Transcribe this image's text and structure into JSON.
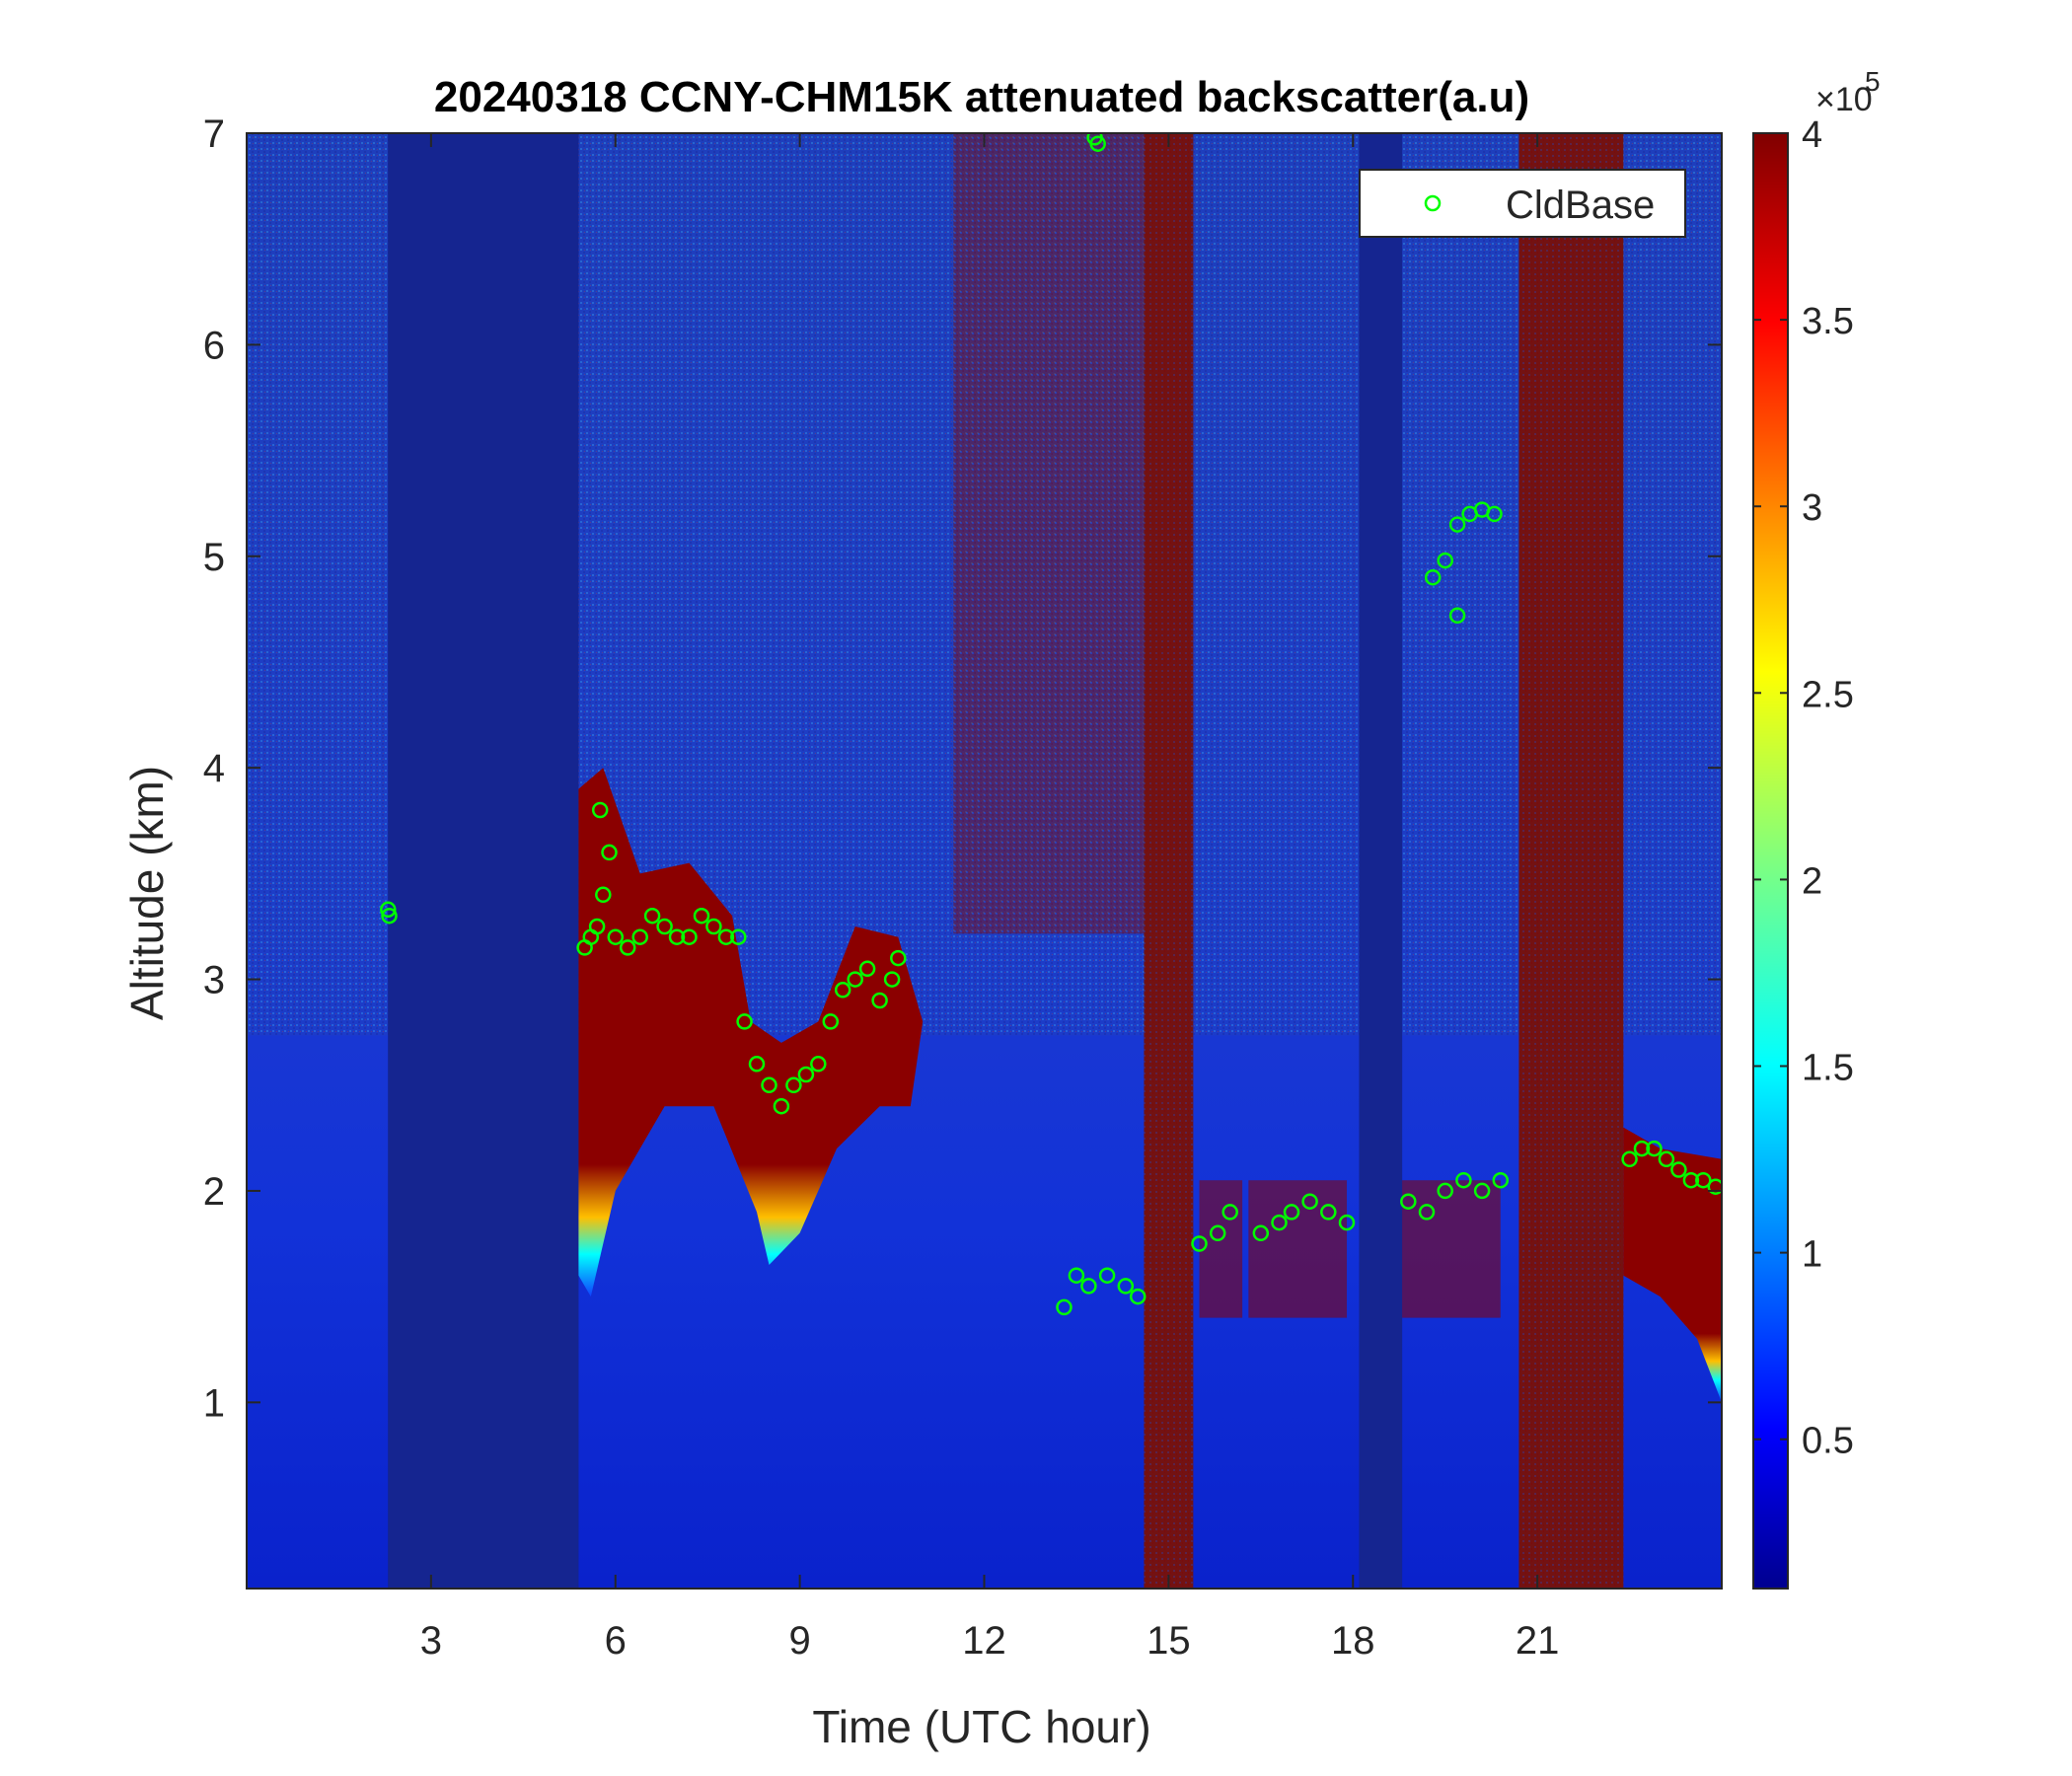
{
  "chart_data": {
    "type": "heatmap",
    "title": "20240318 CCNY-CHM15K attenuated backscatter(a.u)",
    "xlabel": "Time (UTC hour)",
    "ylabel": "Altitude (km)",
    "xlim": [
      0,
      24
    ],
    "ylim": [
      0.12,
      7
    ],
    "x_ticks": [
      3,
      6,
      9,
      12,
      15,
      18,
      21
    ],
    "x_tick_labels": [
      "3",
      "6",
      "9",
      "12",
      "15",
      "18",
      "21"
    ],
    "y_ticks": [
      1,
      2,
      3,
      4,
      5,
      6,
      7
    ],
    "y_tick_labels": [
      "1",
      "2",
      "3",
      "4",
      "5",
      "6",
      "7"
    ],
    "colorbar": {
      "colormap": "jet",
      "clim": [
        0.1,
        4
      ],
      "exponent_label": "×10",
      "exponent_power": "5",
      "ticks": [
        0.5,
        1,
        1.5,
        2,
        2.5,
        3,
        3.5,
        4
      ],
      "tick_labels": [
        "0.5",
        "1",
        "1.5",
        "2",
        "2.5",
        "3",
        "3.5",
        "4"
      ]
    },
    "legend": {
      "position": "top-right",
      "entries": [
        "CldBase"
      ]
    },
    "cloudbase_marker_color": "#00ff00",
    "data_gaps_hours": [
      [
        2.3,
        5.4
      ],
      [
        14.6,
        15.4
      ],
      [
        18.1,
        18.8
      ],
      [
        20.7,
        21.6
      ],
      [
        21.6,
        22.4
      ]
    ],
    "high_backscatter_regions": [
      {
        "x_range": [
          5.4,
          11.0
        ],
        "note": "cloud layer ~2.5–3.5 km"
      },
      {
        "x_range": [
          22.4,
          24.0
        ],
        "note": "cloud layer ~1.2–2.2 km"
      }
    ],
    "cloud_base_series": {
      "name": "CldBase",
      "points": [
        [
          2.3,
          3.33
        ],
        [
          2.32,
          3.3
        ],
        [
          5.5,
          3.15
        ],
        [
          5.6,
          3.2
        ],
        [
          5.7,
          3.25
        ],
        [
          5.8,
          3.4
        ],
        [
          5.75,
          3.8
        ],
        [
          5.9,
          3.6
        ],
        [
          6.0,
          3.2
        ],
        [
          6.2,
          3.15
        ],
        [
          6.4,
          3.2
        ],
        [
          6.6,
          3.3
        ],
        [
          6.8,
          3.25
        ],
        [
          7.0,
          3.2
        ],
        [
          7.2,
          3.2
        ],
        [
          7.4,
          3.3
        ],
        [
          7.6,
          3.25
        ],
        [
          7.8,
          3.2
        ],
        [
          8.0,
          3.2
        ],
        [
          8.1,
          2.8
        ],
        [
          8.3,
          2.6
        ],
        [
          8.5,
          2.5
        ],
        [
          8.7,
          2.4
        ],
        [
          8.9,
          2.5
        ],
        [
          9.1,
          2.55
        ],
        [
          9.3,
          2.6
        ],
        [
          9.5,
          2.8
        ],
        [
          9.7,
          2.95
        ],
        [
          9.9,
          3.0
        ],
        [
          10.1,
          3.05
        ],
        [
          10.3,
          2.9
        ],
        [
          10.5,
          3.0
        ],
        [
          10.6,
          3.1
        ],
        [
          13.3,
          1.45
        ],
        [
          13.5,
          1.6
        ],
        [
          13.7,
          1.55
        ],
        [
          14.0,
          1.6
        ],
        [
          14.3,
          1.55
        ],
        [
          14.5,
          1.5
        ],
        [
          13.8,
          6.98
        ],
        [
          13.85,
          6.95
        ],
        [
          15.5,
          1.75
        ],
        [
          15.8,
          1.8
        ],
        [
          16.0,
          1.9
        ],
        [
          16.5,
          1.8
        ],
        [
          16.8,
          1.85
        ],
        [
          17.0,
          1.9
        ],
        [
          17.3,
          1.95
        ],
        [
          17.6,
          1.9
        ],
        [
          17.9,
          1.85
        ],
        [
          18.9,
          1.95
        ],
        [
          19.2,
          1.9
        ],
        [
          19.5,
          2.0
        ],
        [
          19.8,
          2.05
        ],
        [
          20.1,
          2.0
        ],
        [
          20.4,
          2.05
        ],
        [
          19.3,
          4.9
        ],
        [
          19.5,
          4.98
        ],
        [
          19.7,
          5.15
        ],
        [
          19.9,
          5.2
        ],
        [
          20.1,
          5.22
        ],
        [
          20.3,
          5.2
        ],
        [
          19.7,
          4.72
        ],
        [
          22.5,
          2.15
        ],
        [
          22.7,
          2.2
        ],
        [
          22.9,
          2.2
        ],
        [
          23.1,
          2.15
        ],
        [
          23.3,
          2.1
        ],
        [
          23.5,
          2.05
        ],
        [
          23.7,
          2.05
        ],
        [
          23.9,
          2.02
        ]
      ]
    }
  }
}
